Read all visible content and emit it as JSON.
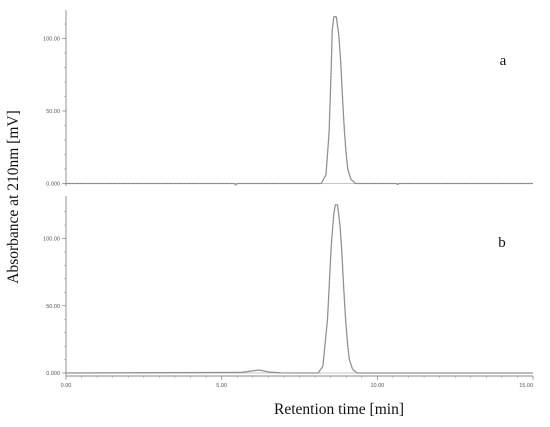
{
  "chart_data": {
    "type": "line",
    "ylabel": "Absorbance at 210nm [mV]",
    "xlabel": "Retention time [min]",
    "xlim": [
      0,
      15
    ],
    "x_ticks": [
      "0.00",
      "5.00",
      "10.00",
      "15.00"
    ],
    "grid": false,
    "colors": {
      "trace": "#9a9a9a",
      "axis": "#888888",
      "text": "#111111"
    },
    "panels": [
      {
        "label": "a",
        "ylim": [
          0,
          120
        ],
        "y_ticks": [
          "0.000",
          "50.00",
          "100.00"
        ],
        "y_tick_values": [
          0,
          50,
          100
        ],
        "series": [
          {
            "x": [
              0,
              5.4,
              5.45,
              5.5,
              5.6,
              8.2,
              8.35,
              8.45,
              8.52,
              8.55,
              8.6,
              8.68,
              8.76,
              8.82,
              8.88,
              8.94,
              9.0,
              9.05,
              9.15,
              9.3,
              10.6,
              10.65,
              10.7,
              15.0
            ],
            "y": [
              0,
              0,
              -1,
              0,
              0,
              0,
              6,
              35,
              80,
              105,
              115,
              115,
              103,
              85,
              60,
              37,
              20,
              10,
              3,
              0,
              0,
              -0.6,
              0,
              0
            ]
          }
        ]
      },
      {
        "label": "b",
        "ylim": [
          0,
          120
        ],
        "y_ticks": [
          "0.000",
          "50.00",
          "100.00"
        ],
        "y_tick_values": [
          0,
          50,
          100
        ],
        "series": [
          {
            "x": [
              0,
              5.6,
              6.2,
              6.5,
              6.9,
              8.1,
              8.25,
              8.4,
              8.52,
              8.6,
              8.65,
              8.72,
              8.8,
              8.86,
              8.92,
              8.98,
              9.05,
              9.1,
              9.2,
              9.35,
              15.0
            ],
            "y": [
              0,
              0.4,
              2.2,
              0.8,
              0.1,
              0,
              5,
              40,
              95,
              118,
              125,
              125,
              110,
              90,
              63,
              40,
              20,
              10,
              3,
              0,
              0
            ]
          }
        ]
      }
    ]
  }
}
